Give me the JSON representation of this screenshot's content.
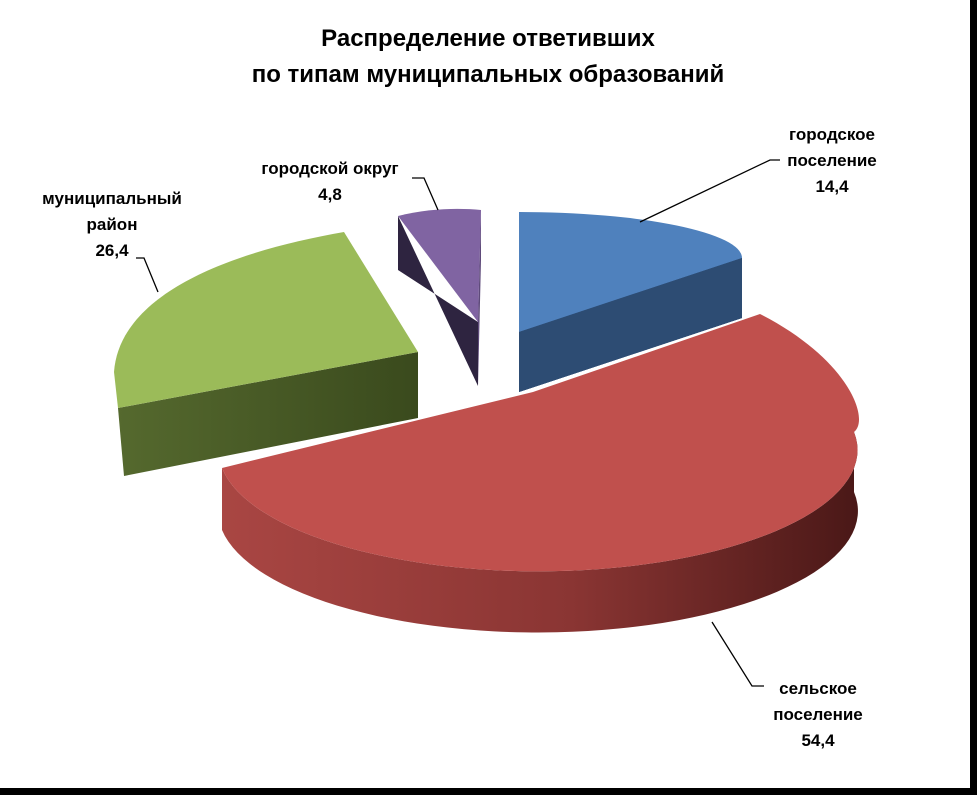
{
  "chart_data": {
    "type": "pie",
    "title_lines": [
      "Распределение ответивших",
      "по типам муниципальных образований"
    ],
    "slices": [
      {
        "category": "городское поселение",
        "label_lines": [
          "городское",
          "поселение"
        ],
        "value_label": "14,4",
        "value": 14.4,
        "color": "#4F81BD"
      },
      {
        "category": "сельское поселение",
        "label_lines": [
          "сельское",
          "поселение"
        ],
        "value_label": "54,4",
        "value": 54.4,
        "color": "#C0504D"
      },
      {
        "category": "муниципальный район",
        "label_lines": [
          "муниципальный",
          "район"
        ],
        "value_label": "26,4",
        "value": 26.4,
        "color": "#9BBB59"
      },
      {
        "category": "городской округ",
        "label_lines": [
          "городской округ"
        ],
        "value_label": "4,8",
        "value": 4.8,
        "color": "#8064A2"
      }
    ],
    "legend": "none",
    "style": "3d-exploded"
  }
}
